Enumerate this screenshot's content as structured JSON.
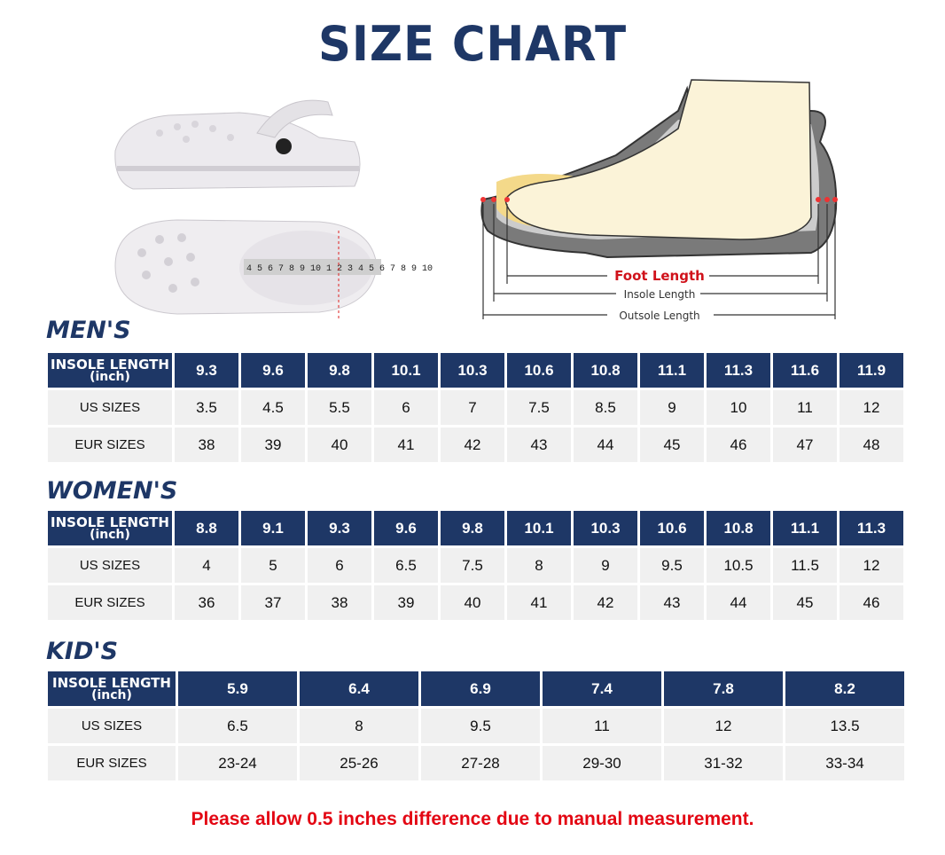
{
  "title": "SIZE CHART",
  "diagram": {
    "foot_length": "Foot Length",
    "insole_length": "Insole Length",
    "outsole_length": "Outsole Length",
    "tape_numbers": "4 5 6 7 8 9 10 1 2 3 4 5 6 7 8 9 10"
  },
  "row_labels": {
    "insole": "INSOLE LENGTH",
    "unit": "(inch)",
    "us": "US SIZES",
    "eur": "EUR SIZES"
  },
  "tables": [
    {
      "title": "MEN'S",
      "insole": [
        "9.3",
        "9.6",
        "9.8",
        "10.1",
        "10.3",
        "10.6",
        "10.8",
        "11.1",
        "11.3",
        "11.6",
        "11.9"
      ],
      "us": [
        "3.5",
        "4.5",
        "5.5",
        "6",
        "7",
        "7.5",
        "8.5",
        "9",
        "10",
        "11",
        "12"
      ],
      "eur": [
        "38",
        "39",
        "40",
        "41",
        "42",
        "43",
        "44",
        "45",
        "46",
        "47",
        "48"
      ]
    },
    {
      "title": "WOMEN'S",
      "insole": [
        "8.8",
        "9.1",
        "9.3",
        "9.6",
        "9.8",
        "10.1",
        "10.3",
        "10.6",
        "10.8",
        "11.1",
        "11.3"
      ],
      "us": [
        "4",
        "5",
        "6",
        "6.5",
        "7.5",
        "8",
        "9",
        "9.5",
        "10.5",
        "11.5",
        "12"
      ],
      "eur": [
        "36",
        "37",
        "38",
        "39",
        "40",
        "41",
        "42",
        "43",
        "44",
        "45",
        "46"
      ]
    },
    {
      "title": "KID'S",
      "insole": [
        "5.9",
        "6.4",
        "6.9",
        "7.4",
        "7.8",
        "8.2"
      ],
      "us": [
        "6.5",
        "8",
        "9.5",
        "11",
        "12",
        "13.5"
      ],
      "eur": [
        "23-24",
        "25-26",
        "27-28",
        "29-30",
        "31-32",
        "33-34"
      ]
    }
  ],
  "note": "Please allow 0.5 inches difference due to manual measurement.",
  "colors": {
    "header": "#1e3766",
    "cell": "#f0f0f0",
    "note": "#e30613"
  }
}
